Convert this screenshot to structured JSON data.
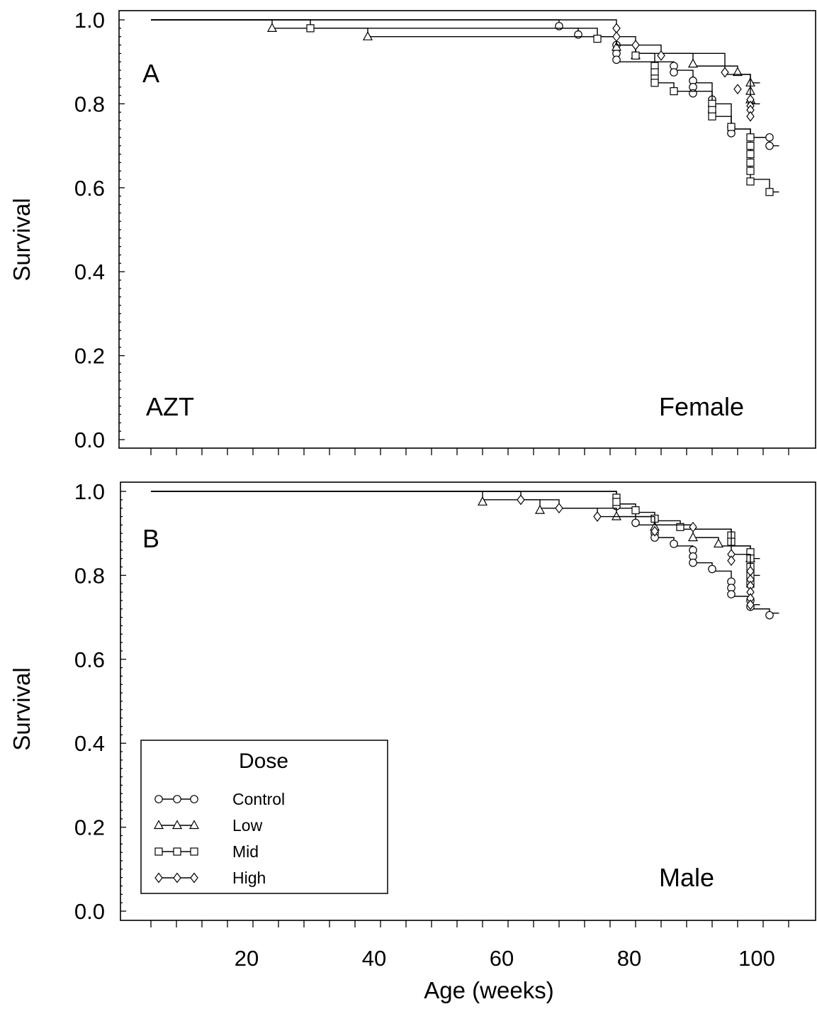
{
  "chart_data": [
    {
      "type": "line",
      "panel": "A",
      "annotations": [
        "AZT",
        "Female"
      ],
      "xlabel": "",
      "ylabel": "Survival",
      "xlim": [
        0,
        108
      ],
      "ylim": [
        0,
        1.0
      ],
      "yticks": [
        "0.0",
        "0.2",
        "0.4",
        "0.6",
        "0.8",
        "1.0"
      ],
      "series": [
        {
          "name": "Control",
          "marker": "circle",
          "steps": [
            [
              5,
              1.0
            ],
            [
              69,
              0.98
            ],
            [
              72,
              0.96
            ],
            [
              78,
              0.94
            ],
            [
              78,
              0.92
            ],
            [
              78,
              0.9
            ],
            [
              87,
              0.88
            ],
            [
              90,
              0.85
            ],
            [
              93,
              0.8
            ],
            [
              96,
              0.74
            ],
            [
              99,
              0.72
            ],
            [
              102,
              0.7
            ]
          ],
          "censored": [
            [
              69,
              0.985
            ],
            [
              72,
              0.965
            ],
            [
              78,
              0.94
            ],
            [
              78,
              0.92
            ],
            [
              78,
              0.905
            ],
            [
              87,
              0.89
            ],
            [
              87,
              0.875
            ],
            [
              90,
              0.855
            ],
            [
              90,
              0.84
            ],
            [
              90,
              0.825
            ],
            [
              93,
              0.81
            ],
            [
              93,
              0.795
            ],
            [
              93,
              0.78
            ],
            [
              96,
              0.745
            ],
            [
              96,
              0.73
            ],
            [
              102,
              0.72
            ],
            [
              102,
              0.7
            ]
          ]
        },
        {
          "name": "Low",
          "marker": "triangle",
          "steps": [
            [
              5,
              1.0
            ],
            [
              24,
              0.98
            ],
            [
              39,
              0.96
            ],
            [
              78,
              0.94
            ],
            [
              81,
              0.92
            ],
            [
              90,
              0.89
            ],
            [
              97,
              0.87
            ],
            [
              99,
              0.85
            ]
          ],
          "censored": [
            [
              24,
              0.98
            ],
            [
              39,
              0.96
            ],
            [
              78,
              0.935
            ],
            [
              81,
              0.915
            ],
            [
              90,
              0.895
            ],
            [
              97,
              0.875
            ],
            [
              99,
              0.85
            ],
            [
              99,
              0.83
            ],
            [
              99,
              0.81
            ]
          ]
        },
        {
          "name": "Mid",
          "marker": "square",
          "steps": [
            [
              5,
              1.0
            ],
            [
              30,
              0.98
            ],
            [
              75,
              0.96
            ],
            [
              78,
              0.94
            ],
            [
              81,
              0.92
            ],
            [
              84,
              0.85
            ],
            [
              87,
              0.83
            ],
            [
              93,
              0.77
            ],
            [
              96,
              0.74
            ],
            [
              99,
              0.62
            ],
            [
              102,
              0.59
            ]
          ],
          "censored": [
            [
              30,
              0.98
            ],
            [
              75,
              0.955
            ],
            [
              81,
              0.915
            ],
            [
              84,
              0.89
            ],
            [
              84,
              0.875
            ],
            [
              84,
              0.86
            ],
            [
              84,
              0.85
            ],
            [
              87,
              0.83
            ],
            [
              93,
              0.8
            ],
            [
              93,
              0.785
            ],
            [
              93,
              0.77
            ],
            [
              96,
              0.745
            ],
            [
              99,
              0.72
            ],
            [
              99,
              0.7
            ],
            [
              99,
              0.68
            ],
            [
              99,
              0.66
            ],
            [
              99,
              0.64
            ],
            [
              99,
              0.615
            ],
            [
              102,
              0.59
            ]
          ]
        },
        {
          "name": "High",
          "marker": "diamond",
          "steps": [
            [
              5,
              1.0
            ],
            [
              78,
              0.96
            ],
            [
              81,
              0.94
            ],
            [
              85,
              0.92
            ],
            [
              95,
              0.87
            ],
            [
              99,
              0.8
            ]
          ],
          "censored": [
            [
              78,
              0.98
            ],
            [
              78,
              0.96
            ],
            [
              81,
              0.94
            ],
            [
              85,
              0.915
            ],
            [
              95,
              0.875
            ],
            [
              97,
              0.835
            ],
            [
              99,
              0.81
            ],
            [
              99,
              0.795
            ],
            [
              99,
              0.785
            ],
            [
              99,
              0.77
            ]
          ]
        }
      ]
    },
    {
      "type": "line",
      "panel": "B",
      "annotations": [
        "Male"
      ],
      "xlabel": "Age (weeks)",
      "ylabel": "Survival",
      "xlim": [
        0,
        108
      ],
      "ylim": [
        0,
        1.0
      ],
      "xticks": [
        "20",
        "40",
        "60",
        "80",
        "100"
      ],
      "yticks": [
        "0.0",
        "0.2",
        "0.4",
        "0.6",
        "0.8",
        "1.0"
      ],
      "legend": {
        "title": "Dose",
        "position": "bottom-left",
        "entries": [
          "Control",
          "Low",
          "Mid",
          "High"
        ]
      },
      "series": [
        {
          "name": "Control",
          "marker": "circle",
          "steps": [
            [
              5,
              1.0
            ],
            [
              78,
              0.96
            ],
            [
              81,
              0.92
            ],
            [
              84,
              0.89
            ],
            [
              87,
              0.87
            ],
            [
              90,
              0.83
            ],
            [
              93,
              0.81
            ],
            [
              96,
              0.75
            ],
            [
              99,
              0.72
            ],
            [
              102,
              0.71
            ]
          ],
          "censored": [
            [
              78,
              0.965
            ],
            [
              81,
              0.925
            ],
            [
              84,
              0.9
            ],
            [
              84,
              0.89
            ],
            [
              87,
              0.875
            ],
            [
              90,
              0.86
            ],
            [
              90,
              0.845
            ],
            [
              90,
              0.83
            ],
            [
              93,
              0.815
            ],
            [
              96,
              0.785
            ],
            [
              96,
              0.77
            ],
            [
              96,
              0.755
            ],
            [
              99,
              0.74
            ],
            [
              99,
              0.725
            ],
            [
              102,
              0.705
            ]
          ]
        },
        {
          "name": "Low",
          "marker": "triangle",
          "steps": [
            [
              5,
              1.0
            ],
            [
              57,
              0.98
            ],
            [
              66,
              0.96
            ],
            [
              78,
              0.94
            ],
            [
              84,
              0.92
            ],
            [
              90,
              0.89
            ],
            [
              94,
              0.87
            ],
            [
              99,
              0.84
            ]
          ],
          "censored": [
            [
              57,
              0.975
            ],
            [
              66,
              0.955
            ],
            [
              78,
              0.94
            ],
            [
              84,
              0.915
            ],
            [
              90,
              0.89
            ],
            [
              94,
              0.875
            ],
            [
              99,
              0.84
            ]
          ]
        },
        {
          "name": "Mid",
          "marker": "square",
          "steps": [
            [
              5,
              1.0
            ],
            [
              78,
              0.97
            ],
            [
              81,
              0.95
            ],
            [
              84,
              0.93
            ],
            [
              88,
              0.91
            ],
            [
              96,
              0.87
            ],
            [
              99,
              0.8
            ]
          ],
          "censored": [
            [
              78,
              0.985
            ],
            [
              78,
              0.975
            ],
            [
              81,
              0.955
            ],
            [
              84,
              0.935
            ],
            [
              88,
              0.915
            ],
            [
              96,
              0.895
            ],
            [
              96,
              0.88
            ],
            [
              99,
              0.855
            ],
            [
              99,
              0.84
            ],
            [
              99,
              0.82
            ],
            [
              99,
              0.8
            ],
            [
              99,
              0.78
            ]
          ]
        },
        {
          "name": "High",
          "marker": "diamond",
          "steps": [
            [
              5,
              1.0
            ],
            [
              63,
              0.98
            ],
            [
              69,
              0.96
            ],
            [
              75,
              0.94
            ],
            [
              84,
              0.92
            ],
            [
              90,
              0.91
            ],
            [
              96,
              0.85
            ],
            [
              99,
              0.73
            ]
          ],
          "censored": [
            [
              63,
              0.98
            ],
            [
              69,
              0.96
            ],
            [
              75,
              0.94
            ],
            [
              84,
              0.905
            ],
            [
              90,
              0.915
            ],
            [
              96,
              0.85
            ],
            [
              96,
              0.835
            ],
            [
              99,
              0.81
            ],
            [
              99,
              0.79
            ],
            [
              99,
              0.775
            ],
            [
              99,
              0.76
            ],
            [
              99,
              0.745
            ],
            [
              99,
              0.73
            ]
          ]
        }
      ]
    }
  ]
}
